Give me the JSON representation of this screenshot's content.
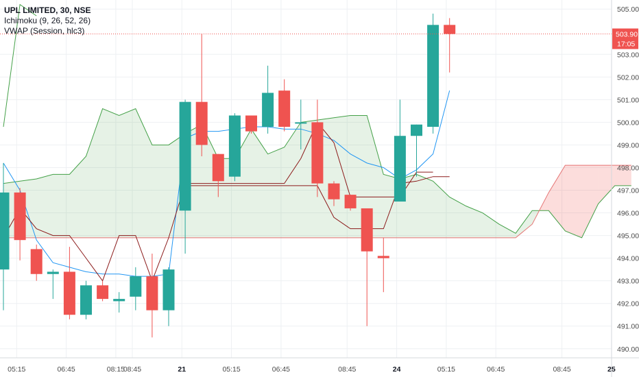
{
  "legend": {
    "title": "UPL LIMITED, 30, NSE",
    "indicators": [
      "Ichimoku (9, 26, 52, 26)",
      "VWAP (Session, hlc3)"
    ]
  },
  "price_label": {
    "value": "503.90",
    "countdown": "17:05",
    "color": "#ef5350"
  },
  "colors": {
    "up": "#26a69a",
    "down": "#ef5350",
    "conversion": "#2196f3",
    "base": "#8b1a1a",
    "lagging": "#43a047",
    "span_a": "#43a047",
    "span_b": "#e57373",
    "cloud_bull": "#43a04722",
    "cloud_bear": "#ef535033",
    "vwap": "#1e3a6e",
    "grid": "#eef0f3"
  },
  "chart_data": {
    "type": "candlestick",
    "title": "UPL LIMITED, 30, NSE",
    "ylim": [
      489.6,
      505.4
    ],
    "y_ticks": [
      490,
      491,
      492,
      493,
      494,
      495,
      496,
      497,
      498,
      499,
      500,
      501,
      502,
      503,
      505
    ],
    "x_tick_labels": [
      {
        "label": "05:15",
        "bar": 0.8
      },
      {
        "label": "06:45",
        "bar": 3.8
      },
      {
        "label": "08:15",
        "bar": 6.8
      },
      {
        "label": "08:45",
        "bar": 7.8
      },
      {
        "label": "21",
        "bar": 10.8,
        "bold": true
      },
      {
        "label": "05:15",
        "bar": 13.8
      },
      {
        "label": "06:45",
        "bar": 16.8
      },
      {
        "label": "08:45",
        "bar": 20.8
      },
      {
        "label": "24",
        "bar": 23.8,
        "bold": true
      },
      {
        "label": "05:15",
        "bar": 26.8
      },
      {
        "label": "06:45",
        "bar": 29.8
      },
      {
        "label": "08:45",
        "bar": 33.8
      },
      {
        "label": "25",
        "bar": 36.8,
        "bold": true
      }
    ],
    "candles": [
      {
        "o": 493.5,
        "h": 498.2,
        "l": 491.7,
        "c": 496.9
      },
      {
        "o": 496.9,
        "h": 497.1,
        "l": 493.9,
        "c": 494.8
      },
      {
        "o": 494.4,
        "h": 494.6,
        "l": 493.0,
        "c": 493.3
      },
      {
        "o": 493.3,
        "h": 493.5,
        "l": 492.2,
        "c": 493.4
      },
      {
        "o": 493.4,
        "h": 494.5,
        "l": 491.3,
        "c": 491.5
      },
      {
        "o": 491.5,
        "h": 493.0,
        "l": 491.3,
        "c": 492.8
      },
      {
        "o": 492.8,
        "h": 493.0,
        "l": 492.1,
        "c": 492.2
      },
      {
        "o": 492.1,
        "h": 492.5,
        "l": 491.6,
        "c": 492.2
      },
      {
        "o": 492.3,
        "h": 493.6,
        "l": 491.7,
        "c": 493.2
      },
      {
        "o": 493.2,
        "h": 494.2,
        "l": 490.5,
        "c": 491.7
      },
      {
        "o": 491.7,
        "h": 493.6,
        "l": 491.0,
        "c": 493.5
      },
      {
        "o": 496.1,
        "h": 501.0,
        "l": 494.2,
        "c": 500.9
      },
      {
        "o": 500.9,
        "h": 503.9,
        "l": 498.5,
        "c": 499.0
      },
      {
        "o": 498.6,
        "h": 498.6,
        "l": 496.7,
        "c": 497.4
      },
      {
        "o": 497.6,
        "h": 500.4,
        "l": 497.4,
        "c": 500.3
      },
      {
        "o": 500.3,
        "h": 500.3,
        "l": 499.5,
        "c": 499.6
      },
      {
        "o": 499.8,
        "h": 502.5,
        "l": 499.5,
        "c": 501.3
      },
      {
        "o": 501.4,
        "h": 501.9,
        "l": 499.6,
        "c": 499.8
      },
      {
        "o": 500.0,
        "h": 501.0,
        "l": 498.8,
        "c": 500.0
      },
      {
        "o": 500.0,
        "h": 501.0,
        "l": 496.7,
        "c": 497.3
      },
      {
        "o": 497.3,
        "h": 497.4,
        "l": 496.3,
        "c": 496.6
      },
      {
        "o": 496.8,
        "h": 496.8,
        "l": 496.1,
        "c": 496.2
      },
      {
        "o": 496.2,
        "h": 496.2,
        "l": 491.0,
        "c": 494.3
      },
      {
        "o": 494.1,
        "h": 494.9,
        "l": 492.5,
        "c": 494.0
      },
      {
        "o": 496.5,
        "h": 501.0,
        "l": 496.5,
        "c": 499.4
      },
      {
        "o": 499.4,
        "h": 499.9,
        "l": 497.6,
        "c": 499.9
      },
      {
        "o": 499.8,
        "h": 504.8,
        "l": 499.5,
        "c": 504.3
      },
      {
        "o": 504.3,
        "h": 504.6,
        "l": 502.2,
        "c": 503.9
      }
    ],
    "tenkan": [
      [
        0,
        494.9
      ],
      [
        1,
        496.2
      ],
      [
        2,
        495.3
      ],
      [
        3,
        495.0
      ],
      [
        4,
        495.0
      ],
      [
        5,
        494.0
      ],
      [
        6,
        493.0
      ],
      [
        7,
        495.0
      ],
      [
        8,
        495.0
      ],
      [
        9,
        493.0
      ],
      [
        10,
        494.9
      ],
      [
        11,
        497.3
      ],
      [
        12,
        497.3
      ],
      [
        13,
        497.3
      ],
      [
        14,
        497.3
      ],
      [
        15,
        497.3
      ],
      [
        16,
        497.3
      ],
      [
        17,
        497.3
      ],
      [
        18,
        498.4
      ],
      [
        19,
        500.0
      ],
      [
        20,
        499.1
      ],
      [
        21,
        496.7
      ],
      [
        22,
        496.7
      ],
      [
        23,
        496.7
      ],
      [
        24,
        496.7
      ],
      [
        25,
        497.8
      ],
      [
        26,
        497.8
      ]
    ],
    "kijun": [
      [
        0,
        498.2
      ],
      [
        1,
        497.0
      ],
      [
        2,
        494.8
      ],
      [
        3,
        493.8
      ],
      [
        4,
        493.6
      ],
      [
        5,
        493.4
      ],
      [
        6,
        493.3
      ],
      [
        7,
        493.3
      ],
      [
        8,
        493.2
      ],
      [
        9,
        493.2
      ],
      [
        10,
        493.3
      ],
      [
        11,
        499.3
      ],
      [
        12,
        499.6
      ],
      [
        13,
        499.6
      ],
      [
        14,
        499.7
      ],
      [
        15,
        499.8
      ],
      [
        16,
        499.8
      ],
      [
        17,
        499.7
      ],
      [
        18,
        499.7
      ],
      [
        19,
        499.5
      ],
      [
        20,
        499.2
      ],
      [
        21,
        498.6
      ],
      [
        22,
        498.2
      ],
      [
        23,
        498.0
      ],
      [
        24,
        497.5
      ],
      [
        25,
        497.9
      ],
      [
        26,
        498.6
      ],
      [
        27,
        501.4
      ]
    ],
    "vwap": [
      [
        11,
        497.2
      ],
      [
        12,
        497.2
      ],
      [
        13,
        497.2
      ],
      [
        14,
        497.2
      ],
      [
        15,
        497.2
      ],
      [
        16,
        497.2
      ],
      [
        17,
        497.2
      ],
      [
        18,
        497.2
      ],
      [
        19,
        497.2
      ],
      [
        20,
        495.8
      ],
      [
        21,
        495.3
      ],
      [
        22,
        495.3
      ],
      [
        23,
        495.3
      ],
      [
        24,
        497.3
      ],
      [
        25,
        497.4
      ],
      [
        26,
        497.6
      ],
      [
        27,
        497.6
      ]
    ],
    "chikou": [
      [
        0,
        499.8
      ],
      [
        1,
        505.2
      ],
      [
        2,
        504.7
      ]
    ],
    "span_a": [
      [
        0,
        497.3
      ],
      [
        1,
        497.4
      ],
      [
        2,
        497.5
      ],
      [
        3,
        497.7
      ],
      [
        4,
        497.7
      ],
      [
        5,
        498.5
      ],
      [
        6,
        500.6
      ],
      [
        7,
        500.3
      ],
      [
        8,
        500.6
      ],
      [
        9,
        499.0
      ],
      [
        10,
        499.0
      ],
      [
        11,
        499.5
      ],
      [
        12,
        499.9
      ],
      [
        13,
        498.4
      ],
      [
        14,
        498.4
      ],
      [
        15,
        499.7
      ],
      [
        16,
        498.6
      ],
      [
        17,
        498.9
      ],
      [
        18,
        500.0
      ],
      [
        19,
        500.1
      ],
      [
        20,
        500.2
      ],
      [
        21,
        500.3
      ],
      [
        22,
        500.3
      ],
      [
        23,
        497.7
      ],
      [
        24,
        497.5
      ],
      [
        25,
        497.7
      ],
      [
        26,
        497.4
      ],
      [
        27,
        496.7
      ],
      [
        28,
        496.3
      ],
      [
        29,
        496.0
      ],
      [
        30,
        495.5
      ],
      [
        31,
        495.1
      ],
      [
        32,
        496.1
      ],
      [
        33,
        496.1
      ],
      [
        34,
        495.2
      ],
      [
        35,
        494.9
      ],
      [
        36,
        496.4
      ],
      [
        37,
        497.2
      ],
      [
        38,
        497.2
      ]
    ],
    "span_b": [
      [
        0,
        494.9
      ],
      [
        1,
        494.9
      ],
      [
        2,
        494.9
      ],
      [
        3,
        494.9
      ],
      [
        4,
        494.9
      ],
      [
        5,
        494.9
      ],
      [
        6,
        494.9
      ],
      [
        7,
        494.9
      ],
      [
        8,
        494.9
      ],
      [
        9,
        494.9
      ],
      [
        10,
        494.9
      ],
      [
        11,
        494.9
      ],
      [
        12,
        494.9
      ],
      [
        13,
        494.9
      ],
      [
        14,
        494.9
      ],
      [
        15,
        494.9
      ],
      [
        16,
        494.9
      ],
      [
        17,
        494.9
      ],
      [
        18,
        494.9
      ],
      [
        19,
        494.9
      ],
      [
        20,
        494.9
      ],
      [
        21,
        494.9
      ],
      [
        22,
        494.9
      ],
      [
        23,
        494.9
      ],
      [
        24,
        494.9
      ],
      [
        25,
        494.9
      ],
      [
        26,
        494.9
      ],
      [
        27,
        494.9
      ],
      [
        28,
        494.9
      ],
      [
        29,
        494.9
      ],
      [
        30,
        494.9
      ],
      [
        31,
        494.9
      ],
      [
        32,
        495.5
      ],
      [
        33,
        496.9
      ],
      [
        34,
        498.1
      ],
      [
        35,
        498.1
      ],
      [
        36,
        498.1
      ],
      [
        37,
        498.1
      ],
      [
        38,
        498.1
      ]
    ]
  }
}
